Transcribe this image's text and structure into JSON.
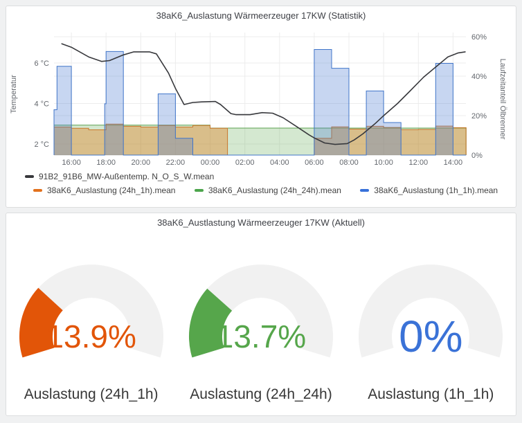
{
  "page": {
    "background": "#F0F1F2"
  },
  "statistik": {
    "title": "38aK6_Auslastung Wärmeerzeuger 17KW (Statistik)",
    "legend": [
      {
        "label": "91B2_91B6_MW-Außentemp. N_O_S_W.mean",
        "color": "#37383C"
      },
      {
        "label": "38aK6_Auslastung (24h_1h).mean",
        "color": "#E2711D"
      },
      {
        "label": "38aK6_Auslastung (24h_24h).mean",
        "color": "#4CA54C"
      },
      {
        "label": "38aK6_Auslastung (1h_1h).mean",
        "color": "#3871D9"
      }
    ]
  },
  "aktuell": {
    "title": "38aK6_Austlastung Wärmeerzeuger 17KW (Aktuell)",
    "gauges": [
      {
        "label": "Auslastung (24h_1h)",
        "value": "13.9%",
        "value_num": 13.9,
        "color": "#E25508"
      },
      {
        "label": "Auslastung (24h_24h)",
        "value": "13.7%",
        "value_num": 13.7,
        "color": "#56A64B"
      },
      {
        "label": "Auslastung (1h_1h)",
        "value": "0%",
        "value_num": 0,
        "color": "#3A72D7"
      }
    ]
  },
  "chart_data": [
    {
      "type": "mixed",
      "title": "38aK6_Auslastung Wärmeerzeuger 17KW (Statistik)",
      "grid": true,
      "legend_position": "bottom",
      "x_axis": {
        "start_time": "15:00",
        "end_time": "14:45",
        "hours_span": 23.75,
        "tick_labels": [
          "16:00",
          "18:00",
          "20:00",
          "22:00",
          "00:00",
          "02:00",
          "04:00",
          "06:00",
          "08:00",
          "10:00",
          "12:00",
          "14:00"
        ]
      },
      "y_left": {
        "label": "Temperatur",
        "tick_labels": [
          "2 °C",
          "4 °C",
          "6 °C"
        ],
        "range_c": [
          1.5,
          7.6
        ]
      },
      "y_right": {
        "label": "Laufzeitanteil Ölbrenner",
        "tick_labels": [
          "0%",
          "20%",
          "40%",
          "60%"
        ],
        "range_pct": [
          0,
          62
        ]
      },
      "series": [
        {
          "name": "91B2_91B6_MW-Außentemp. N_O_S_W.mean",
          "type": "line",
          "axis": "left",
          "stroke": "#37383C",
          "points": [
            [
              0.45,
              6.95
            ],
            [
              1,
              6.78
            ],
            [
              2,
              6.3
            ],
            [
              2.75,
              6.08
            ],
            [
              3.2,
              6.12
            ],
            [
              4,
              6.4
            ],
            [
              4.6,
              6.55
            ],
            [
              5.5,
              6.55
            ],
            [
              5.9,
              6.45
            ],
            [
              6.6,
              5.5
            ],
            [
              7,
              4.75
            ],
            [
              7.5,
              3.95
            ],
            [
              8,
              4.05
            ],
            [
              8.5,
              4.08
            ],
            [
              9.3,
              4.1
            ],
            [
              9.6,
              3.95
            ],
            [
              10.2,
              3.5
            ],
            [
              10.5,
              3.45
            ],
            [
              11.3,
              3.45
            ],
            [
              12,
              3.55
            ],
            [
              12.6,
              3.52
            ],
            [
              13.2,
              3.3
            ],
            [
              14,
              2.85
            ],
            [
              14.7,
              2.45
            ],
            [
              15,
              2.3
            ],
            [
              15.6,
              2.05
            ],
            [
              16.2,
              1.98
            ],
            [
              16.9,
              2.02
            ],
            [
              17.3,
              2.2
            ],
            [
              17.8,
              2.5
            ],
            [
              18.5,
              3.0
            ],
            [
              19,
              3.4
            ],
            [
              19.8,
              4.0
            ],
            [
              20.5,
              4.6
            ],
            [
              21.3,
              5.3
            ],
            [
              22,
              5.8
            ],
            [
              22.7,
              6.3
            ],
            [
              23.3,
              6.5
            ],
            [
              23.7,
              6.55
            ]
          ]
        },
        {
          "name": "38aK6_Auslastung (24h_24h).mean",
          "type": "step-area",
          "axis": "right",
          "stroke": "#5AA14E",
          "fill": "rgba(96,170,80,0.27)",
          "segments": [
            [
              0,
              9,
              15.2
            ],
            [
              9,
              23.75,
              13.7
            ]
          ]
        },
        {
          "name": "38aK6_Auslastung (24h_1h).mean",
          "type": "step-area",
          "axis": "right",
          "stroke": "#C8762B",
          "fill": "rgba(224,132,40,0.42)",
          "segments": [
            [
              0,
              1,
              14.2
            ],
            [
              1,
              2,
              13.6
            ],
            [
              2,
              3,
              12.8
            ],
            [
              3,
              4,
              15.7
            ],
            [
              4,
              5,
              14.6
            ],
            [
              5,
              6,
              14.2
            ],
            [
              6,
              7,
              15.0
            ],
            [
              7,
              8,
              14.2
            ],
            [
              8,
              9,
              15.0
            ],
            [
              9,
              10,
              13.6
            ],
            [
              15,
              16,
              8.5
            ],
            [
              16,
              17,
              14.3
            ],
            [
              17,
              18,
              13.2
            ],
            [
              18,
              19,
              14.6
            ],
            [
              19,
              20,
              14.0
            ],
            [
              20,
              21,
              12.9
            ],
            [
              21,
              22,
              13.0
            ],
            [
              22,
              23,
              14.7
            ],
            [
              23,
              23.75,
              13.9
            ]
          ]
        },
        {
          "name": "38aK6_Auslastung (1h_1h).mean",
          "type": "step-area",
          "axis": "right",
          "stroke": "#3F74C9",
          "fill": "rgba(70,120,210,0.30)",
          "segments": [
            [
              0,
              0.17,
              23
            ],
            [
              0.17,
              1,
              45
            ],
            [
              1,
              2.92,
              0
            ],
            [
              2.92,
              3,
              26
            ],
            [
              3,
              4,
              52.5
            ],
            [
              4,
              6,
              0
            ],
            [
              6,
              7,
              31
            ],
            [
              7,
              8,
              8.5
            ],
            [
              8,
              15,
              0
            ],
            [
              15,
              16,
              53.5
            ],
            [
              16,
              17,
              44
            ],
            [
              17,
              18,
              0
            ],
            [
              18,
              19,
              32.5
            ],
            [
              19,
              20,
              16.5
            ],
            [
              20,
              22,
              0
            ],
            [
              22,
              23,
              46.5
            ],
            [
              23,
              23.75,
              0
            ]
          ]
        }
      ]
    },
    {
      "type": "gauge",
      "title": "38aK6_Austlastung Wärmeerzeuger 17KW (Aktuell)",
      "items": [
        {
          "label": "Auslastung (24h_1h)",
          "value_pct": 13.9
        },
        {
          "label": "Auslastung (24h_24h)",
          "value_pct": 13.7
        },
        {
          "label": "Auslastung (1h_1h)",
          "value_pct": 0
        }
      ]
    }
  ]
}
